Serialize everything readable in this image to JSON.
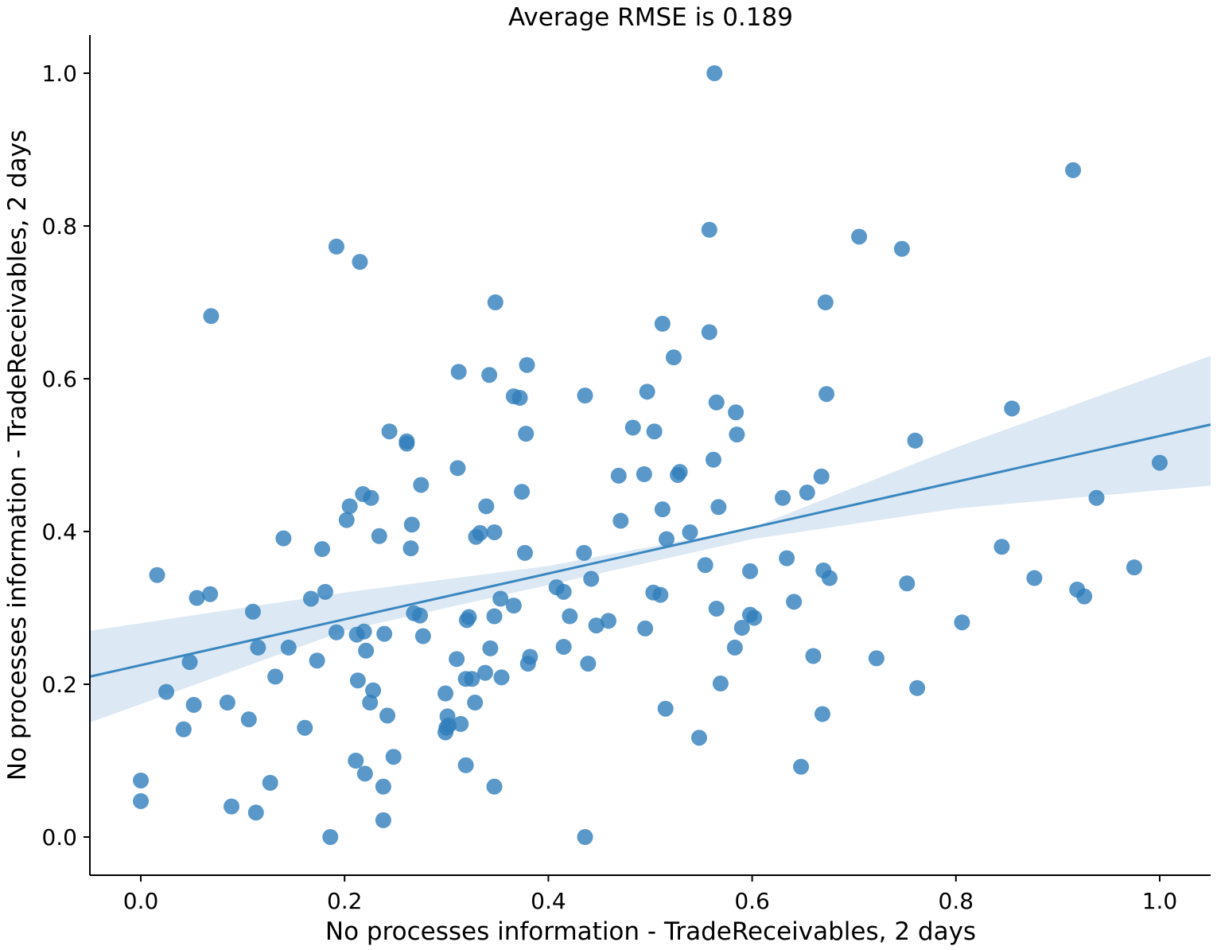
{
  "chart_data": {
    "type": "scatter",
    "title": "Average RMSE is 0.189",
    "xlabel": "No processes information - TradeReceivables, 2 days",
    "ylabel": "No processes information - TradeReceivables, 2 days",
    "xlim": [
      -0.05,
      1.05
    ],
    "ylim": [
      -0.05,
      1.05
    ],
    "xticks": [
      "0.0",
      "0.2",
      "0.4",
      "0.6",
      "0.8",
      "1.0"
    ],
    "yticks": [
      "0.0",
      "0.2",
      "0.4",
      "0.6",
      "0.8",
      "1.0"
    ],
    "grid": false,
    "point_color": "#2f7ebc",
    "regression": {
      "line_color": "#3a87c0",
      "band_color": "#dce8f3",
      "line": [
        [
          -0.05,
          0.21
        ],
        [
          1.05,
          0.54
        ]
      ],
      "band_upper": [
        [
          -0.05,
          0.27
        ],
        [
          0.2,
          0.32
        ],
        [
          0.4,
          0.355
        ],
        [
          0.6,
          0.405
        ],
        [
          0.8,
          0.51
        ],
        [
          1.05,
          0.63
        ]
      ],
      "band_lower": [
        [
          -0.05,
          0.15
        ],
        [
          0.2,
          0.27
        ],
        [
          0.4,
          0.33
        ],
        [
          0.6,
          0.39
        ],
        [
          0.8,
          0.43
        ],
        [
          1.05,
          0.46
        ]
      ]
    },
    "points": [
      [
        0.0,
        0.074
      ],
      [
        0.0,
        0.047
      ],
      [
        0.016,
        0.343
      ],
      [
        0.025,
        0.19
      ],
      [
        0.042,
        0.141
      ],
      [
        0.048,
        0.229
      ],
      [
        0.052,
        0.173
      ],
      [
        0.055,
        0.313
      ],
      [
        0.068,
        0.318
      ],
      [
        0.069,
        0.682
      ],
      [
        0.085,
        0.176
      ],
      [
        0.089,
        0.04
      ],
      [
        0.106,
        0.154
      ],
      [
        0.11,
        0.295
      ],
      [
        0.113,
        0.032
      ],
      [
        0.115,
        0.248
      ],
      [
        0.127,
        0.071
      ],
      [
        0.132,
        0.21
      ],
      [
        0.14,
        0.391
      ],
      [
        0.145,
        0.248
      ],
      [
        0.161,
        0.143
      ],
      [
        0.167,
        0.312
      ],
      [
        0.173,
        0.231
      ],
      [
        0.178,
        0.377
      ],
      [
        0.181,
        0.321
      ],
      [
        0.186,
        0.0
      ],
      [
        0.192,
        0.268
      ],
      [
        0.192,
        0.773
      ],
      [
        0.202,
        0.415
      ],
      [
        0.205,
        0.433
      ],
      [
        0.211,
        0.1
      ],
      [
        0.212,
        0.265
      ],
      [
        0.213,
        0.205
      ],
      [
        0.215,
        0.753
      ],
      [
        0.218,
        0.449
      ],
      [
        0.219,
        0.269
      ],
      [
        0.22,
        0.083
      ],
      [
        0.221,
        0.244
      ],
      [
        0.225,
        0.176
      ],
      [
        0.226,
        0.444
      ],
      [
        0.228,
        0.192
      ],
      [
        0.234,
        0.394
      ],
      [
        0.238,
        0.066
      ],
      [
        0.238,
        0.022
      ],
      [
        0.239,
        0.266
      ],
      [
        0.242,
        0.159
      ],
      [
        0.244,
        0.531
      ],
      [
        0.248,
        0.105
      ],
      [
        0.261,
        0.518
      ],
      [
        0.261,
        0.515
      ],
      [
        0.265,
        0.378
      ],
      [
        0.266,
        0.409
      ],
      [
        0.268,
        0.293
      ],
      [
        0.274,
        0.29
      ],
      [
        0.275,
        0.461
      ],
      [
        0.277,
        0.263
      ],
      [
        0.299,
        0.188
      ],
      [
        0.299,
        0.137
      ],
      [
        0.3,
        0.143
      ],
      [
        0.301,
        0.158
      ],
      [
        0.302,
        0.146
      ],
      [
        0.31,
        0.233
      ],
      [
        0.311,
        0.483
      ],
      [
        0.312,
        0.609
      ],
      [
        0.314,
        0.148
      ],
      [
        0.319,
        0.207
      ],
      [
        0.319,
        0.094
      ],
      [
        0.32,
        0.284
      ],
      [
        0.322,
        0.288
      ],
      [
        0.325,
        0.207
      ],
      [
        0.328,
        0.176
      ],
      [
        0.329,
        0.393
      ],
      [
        0.333,
        0.398
      ],
      [
        0.338,
        0.215
      ],
      [
        0.339,
        0.433
      ],
      [
        0.342,
        0.605
      ],
      [
        0.343,
        0.247
      ],
      [
        0.347,
        0.289
      ],
      [
        0.347,
        0.066
      ],
      [
        0.347,
        0.399
      ],
      [
        0.348,
        0.7
      ],
      [
        0.353,
        0.312
      ],
      [
        0.354,
        0.209
      ],
      [
        0.366,
        0.303
      ],
      [
        0.366,
        0.577
      ],
      [
        0.372,
        0.575
      ],
      [
        0.374,
        0.452
      ],
      [
        0.377,
        0.372
      ],
      [
        0.378,
        0.528
      ],
      [
        0.379,
        0.618
      ],
      [
        0.38,
        0.227
      ],
      [
        0.382,
        0.236
      ],
      [
        0.408,
        0.327
      ],
      [
        0.415,
        0.249
      ],
      [
        0.415,
        0.321
      ],
      [
        0.421,
        0.289
      ],
      [
        0.435,
        0.372
      ],
      [
        0.436,
        0.578
      ],
      [
        0.436,
        0.0
      ],
      [
        0.439,
        0.227
      ],
      [
        0.442,
        0.338
      ],
      [
        0.447,
        0.277
      ],
      [
        0.459,
        0.283
      ],
      [
        0.469,
        0.473
      ],
      [
        0.471,
        0.414
      ],
      [
        0.483,
        0.536
      ],
      [
        0.494,
        0.475
      ],
      [
        0.495,
        0.273
      ],
      [
        0.497,
        0.583
      ],
      [
        0.503,
        0.32
      ],
      [
        0.504,
        0.531
      ],
      [
        0.51,
        0.317
      ],
      [
        0.512,
        0.672
      ],
      [
        0.512,
        0.429
      ],
      [
        0.515,
        0.168
      ],
      [
        0.516,
        0.39
      ],
      [
        0.523,
        0.628
      ],
      [
        0.527,
        0.474
      ],
      [
        0.529,
        0.478
      ],
      [
        0.539,
        0.399
      ],
      [
        0.548,
        0.13
      ],
      [
        0.554,
        0.356
      ],
      [
        0.558,
        0.795
      ],
      [
        0.558,
        0.661
      ],
      [
        0.562,
        0.494
      ],
      [
        0.563,
        1.0
      ],
      [
        0.565,
        0.569
      ],
      [
        0.565,
        0.299
      ],
      [
        0.567,
        0.432
      ],
      [
        0.569,
        0.201
      ],
      [
        0.583,
        0.248
      ],
      [
        0.584,
        0.556
      ],
      [
        0.585,
        0.527
      ],
      [
        0.59,
        0.274
      ],
      [
        0.598,
        0.291
      ],
      [
        0.598,
        0.348
      ],
      [
        0.602,
        0.287
      ],
      [
        0.63,
        0.444
      ],
      [
        0.634,
        0.365
      ],
      [
        0.641,
        0.308
      ],
      [
        0.648,
        0.092
      ],
      [
        0.654,
        0.451
      ],
      [
        0.66,
        0.237
      ],
      [
        0.668,
        0.472
      ],
      [
        0.669,
        0.161
      ],
      [
        0.67,
        0.349
      ],
      [
        0.672,
        0.7
      ],
      [
        0.673,
        0.58
      ],
      [
        0.676,
        0.339
      ],
      [
        0.705,
        0.786
      ],
      [
        0.722,
        0.234
      ],
      [
        0.747,
        0.77
      ],
      [
        0.752,
        0.332
      ],
      [
        0.76,
        0.519
      ],
      [
        0.762,
        0.195
      ],
      [
        0.806,
        0.281
      ],
      [
        0.845,
        0.38
      ],
      [
        0.855,
        0.561
      ],
      [
        0.877,
        0.339
      ],
      [
        0.915,
        0.873
      ],
      [
        0.919,
        0.324
      ],
      [
        0.926,
        0.315
      ],
      [
        0.938,
        0.444
      ],
      [
        0.975,
        0.353
      ],
      [
        1.0,
        0.49
      ]
    ]
  }
}
